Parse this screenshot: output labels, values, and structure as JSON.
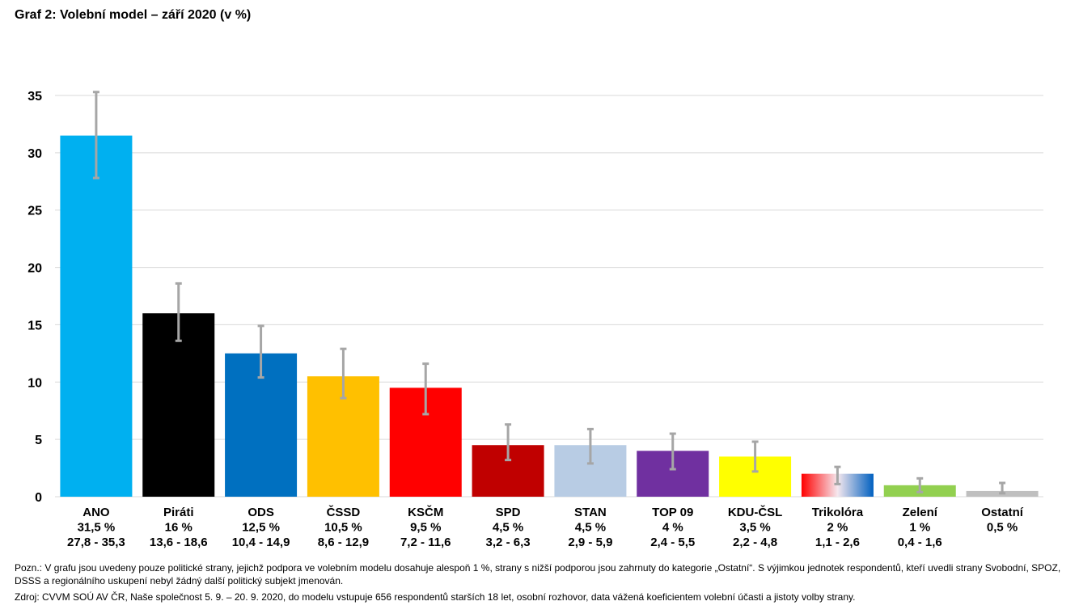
{
  "title": "Graf 2: Volební model – září 2020 (v %)",
  "note": "Pozn.: V grafu jsou uvedeny pouze politické strany, jejichž podpora ve volebním modelu dosahuje alespoň 1 %, strany s nižší podporou jsou zahrnuty do kategorie „Ostatní“. S výjimkou jednotek respondentů, kteří uvedli strany Svobodní, SPOZ, DSSS a regionálního uskupení nebyl žádný další politický subjekt jmenován.",
  "source": "Zdroj: CVVM SOÚ AV ČR, Naše společnost 5. 9. – 20. 9. 2020, do modelu vstupuje 656 respondentů starších 18 let, osobní rozhovor, data vážená koeficientem volební účasti a jistoty volby strany.",
  "chart_data": {
    "type": "bar",
    "ylim": [
      0,
      35
    ],
    "yticks": [
      0,
      5,
      10,
      15,
      20,
      25,
      30,
      35
    ],
    "grid": true,
    "categories": [
      "ANO",
      "Piráti",
      "ODS",
      "ČSSD",
      "KSČM",
      "SPD",
      "STAN",
      "TOP 09",
      "KDU-ČSL",
      "Trikolóra",
      "Zelení",
      "Ostatní"
    ],
    "values": [
      31.5,
      16,
      12.5,
      10.5,
      9.5,
      4.5,
      4.5,
      4,
      3.5,
      2,
      1,
      0.5
    ],
    "value_labels": [
      "31,5 %",
      "16 %",
      "12,5 %",
      "10,5 %",
      "9,5 %",
      "4,5 %",
      "4,5 %",
      "4 %",
      "3,5 %",
      "2 %",
      "1 %",
      "0,5 %"
    ],
    "range_labels": [
      "27,8 - 35,3",
      "13,6 - 18,6",
      "10,4 - 14,9",
      "8,6 - 12,9",
      "7,2 - 11,6",
      "3,2 - 6,3",
      "2,9 - 5,9",
      "2,4 - 5,5",
      "2,2 - 4,8",
      "1,1 - 2,6",
      "0,4 - 1,6",
      ""
    ],
    "error_low": [
      27.8,
      13.6,
      10.4,
      8.6,
      7.2,
      3.2,
      2.9,
      2.4,
      2.2,
      1.1,
      0.4,
      0.3
    ],
    "error_high": [
      35.3,
      18.6,
      14.9,
      12.9,
      11.6,
      6.3,
      5.9,
      5.5,
      4.8,
      2.6,
      1.6,
      1.2
    ],
    "colors": [
      "#00B0F0",
      "#000000",
      "#0070C0",
      "#FFC000",
      "#FF0000",
      "#C00000",
      "#B8CCE4",
      "#7030A0",
      "#FFFF00",
      "gradient-red-blue",
      "#92D050",
      "#BFBFBF"
    ],
    "error_bar_color": "#A6A6A6"
  }
}
